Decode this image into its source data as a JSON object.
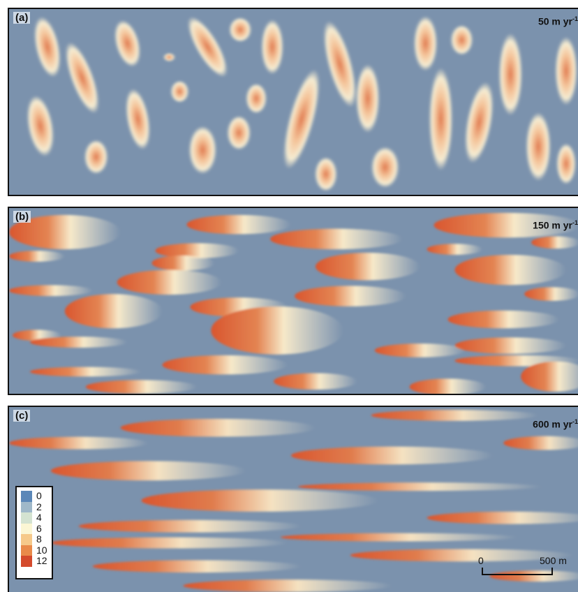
{
  "panels": [
    {
      "label": "(a)",
      "rate_value": "50 m yr",
      "rate_exp": "-1"
    },
    {
      "label": "(b)",
      "rate_value": "150 m yr",
      "rate_exp": "-1"
    },
    {
      "label": "(c)",
      "rate_value": "600 m yr",
      "rate_exp": "-1"
    }
  ],
  "legend": {
    "items": [
      {
        "label": "0",
        "color": "#5b87b8"
      },
      {
        "label": "2",
        "color": "#9fb8c9"
      },
      {
        "label": "4",
        "color": "#d4e3d1"
      },
      {
        "label": "6",
        "color": "#fbf6d4"
      },
      {
        "label": "8",
        "color": "#f6c98a"
      },
      {
        "label": "10",
        "color": "#e98a4a"
      },
      {
        "label": "12",
        "color": "#d44a2c"
      }
    ]
  },
  "scalebar": {
    "start_label": "0",
    "end_label": "500 m"
  },
  "colors": {
    "background": "#7b92ad",
    "pale": "#f3ecd0",
    "crest": "#d95f3a"
  }
}
